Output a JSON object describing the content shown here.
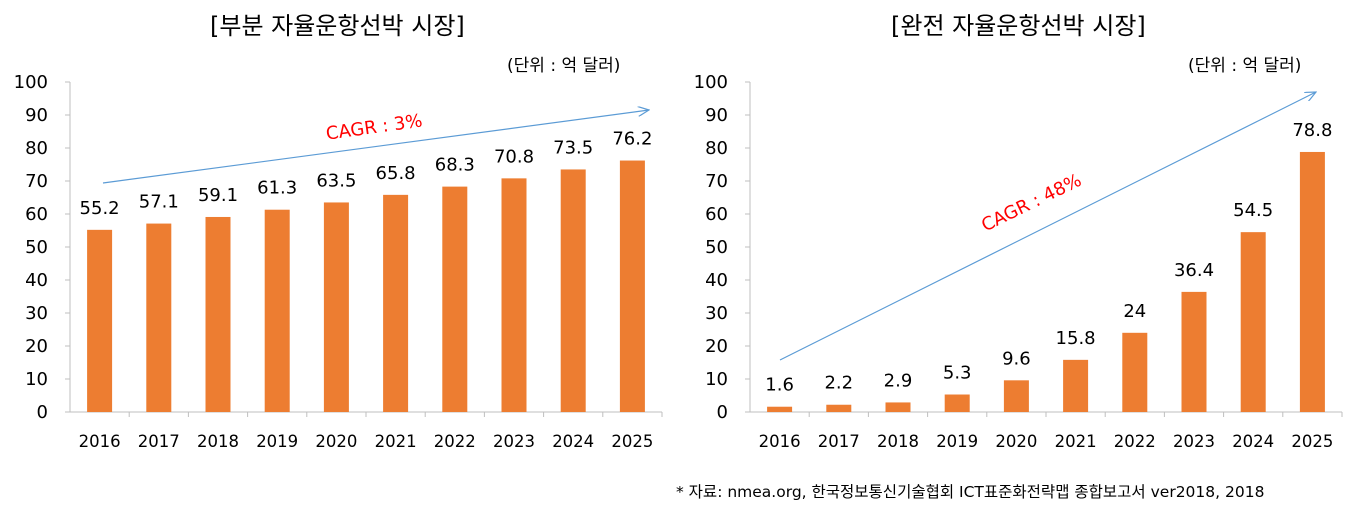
{
  "colors": {
    "bar": "#ED7D31",
    "trend": "#5B9BD5",
    "cagr": "#FF0000",
    "axis": "#BFBFBF"
  },
  "source": "* 자료: nmea.org, 한국정보통신기술협회 ICT표준화전략맵 종합보고서 ver2018, 2018",
  "chart_data": [
    {
      "type": "bar",
      "title": "[부분 자율운항선박 시장]",
      "unit": "(단위 : 억 달러)",
      "categories": [
        "2016",
        "2017",
        "2018",
        "2019",
        "2020",
        "2021",
        "2022",
        "2023",
        "2024",
        "2025"
      ],
      "values": [
        55.2,
        57.1,
        59.1,
        61.3,
        63.5,
        65.8,
        68.3,
        70.8,
        73.5,
        76.2
      ],
      "value_labels": [
        "55.2",
        "57.1",
        "59.1",
        "61.3",
        "63.5",
        "65.8",
        "68.3",
        "70.8",
        "73.5",
        "76.2"
      ],
      "y_ticks": [
        "0",
        "10",
        "20",
        "30",
        "40",
        "50",
        "60",
        "70",
        "80",
        "90",
        "100"
      ],
      "ylim": [
        0,
        100
      ],
      "annotation": "CAGR : 3%",
      "grid": false,
      "legend": "none"
    },
    {
      "type": "bar",
      "title": "[완전 자율운항선박 시장]",
      "unit": "(단위 : 억 달러)",
      "categories": [
        "2016",
        "2017",
        "2018",
        "2019",
        "2020",
        "2021",
        "2022",
        "2023",
        "2024",
        "2025"
      ],
      "values": [
        1.6,
        2.2,
        2.9,
        5.3,
        9.6,
        15.8,
        24,
        36.4,
        54.5,
        78.8
      ],
      "value_labels": [
        "1.6",
        "2.2",
        "2.9",
        "5.3",
        "9.6",
        "15.8",
        "24",
        "36.4",
        "54.5",
        "78.8"
      ],
      "y_ticks": [
        "0",
        "10",
        "20",
        "30",
        "40",
        "50",
        "60",
        "70",
        "80",
        "90",
        "100"
      ],
      "ylim": [
        0,
        100
      ],
      "annotation": "CAGR : 48%",
      "grid": false,
      "legend": "none"
    }
  ]
}
